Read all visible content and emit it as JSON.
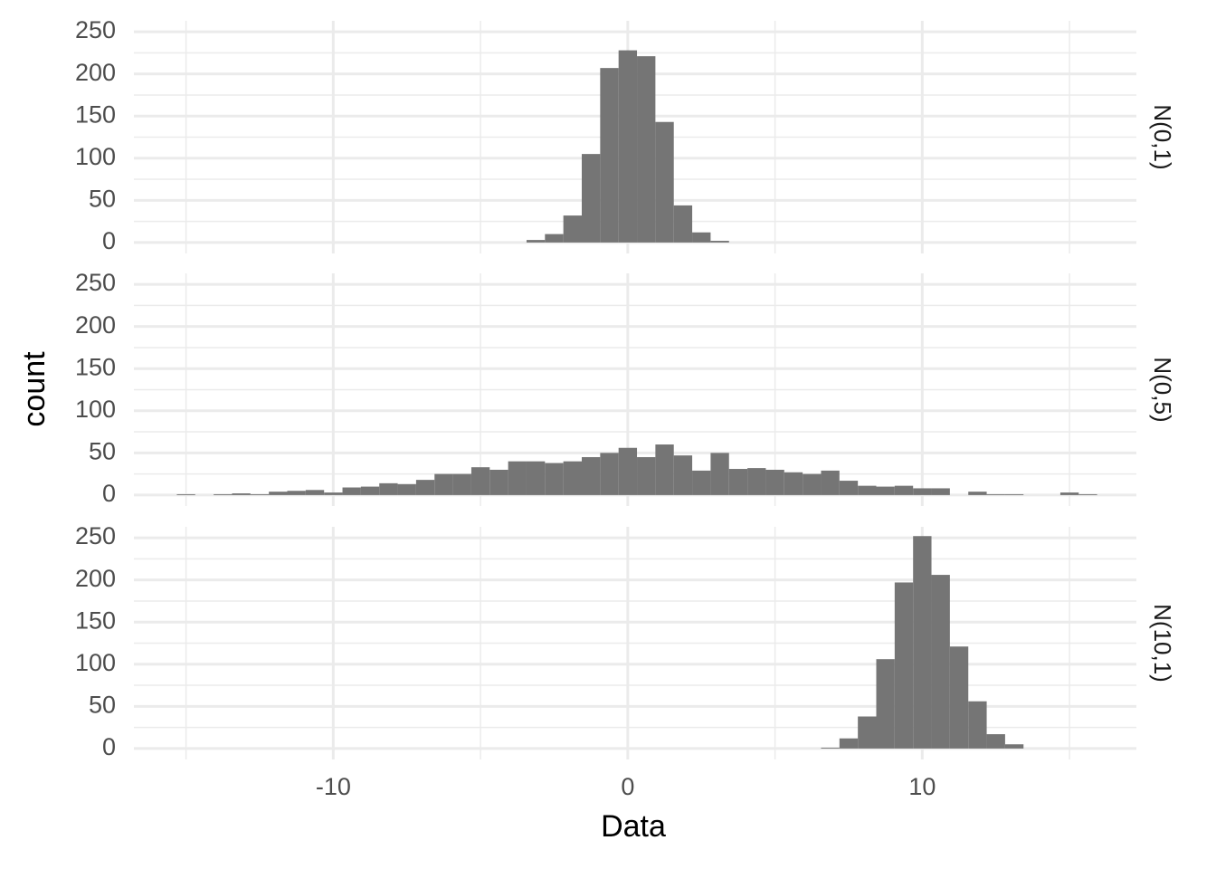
{
  "chart_data": {
    "type": "histogram",
    "x_label": "Data",
    "y_label": "count",
    "xlim": [
      -16.77,
      17.27
    ],
    "xticks": [
      -10,
      0,
      10
    ],
    "minor_xticks": [
      -15,
      -5,
      5,
      15
    ],
    "ylim": [
      -13,
      263
    ],
    "yticks": [
      0,
      50,
      100,
      150,
      200,
      250
    ],
    "minor_yticks": [
      25,
      75,
      125,
      175,
      225
    ],
    "grid": true,
    "color": "#757575",
    "facets": [
      {
        "label": "N(0,1)",
        "bins": [
          -3.4375,
          -2.8125,
          -2.1875,
          -1.5625,
          -0.9375,
          -0.3125,
          0.3125,
          0.9375,
          1.5625,
          2.1875,
          2.8125,
          3.4375
        ],
        "values": [
          3,
          10,
          32,
          105,
          207,
          228,
          221,
          143,
          44,
          12,
          2
        ]
      },
      {
        "label": "N(0,5)",
        "bins": [
          -15.3125,
          -14.6875,
          -14.0625,
          -13.4375,
          -12.8125,
          -12.1875,
          -11.5625,
          -10.9375,
          -10.3125,
          -9.6875,
          -9.0625,
          -8.4375,
          -7.8125,
          -7.1875,
          -6.5625,
          -5.9375,
          -5.3125,
          -4.6875,
          -4.0625,
          -3.4375,
          -2.8125,
          -2.1875,
          -1.5625,
          -0.9375,
          -0.3125,
          0.3125,
          0.9375,
          1.5625,
          2.1875,
          2.8125,
          3.4375,
          4.0625,
          4.6875,
          5.3125,
          5.9375,
          6.5625,
          7.1875,
          7.8125,
          8.4375,
          9.0625,
          9.6875,
          10.3125,
          10.9375,
          11.5625,
          12.1875,
          12.8125,
          13.4375,
          14.0625,
          14.6875,
          15.3125,
          15.9375
        ],
        "values": [
          1,
          0,
          1,
          2,
          1,
          4,
          5,
          6,
          3,
          9,
          10,
          14,
          13,
          18,
          25,
          25,
          33,
          30,
          40,
          40,
          38,
          40,
          45,
          50,
          56,
          45,
          60,
          47,
          29,
          50,
          31,
          32,
          30,
          27,
          25,
          29,
          17,
          11,
          10,
          11,
          8,
          8,
          0,
          4,
          1,
          1,
          0,
          0,
          3,
          1
        ]
      },
      {
        "label": "N(10,1)",
        "bins": [
          6.5625,
          7.1875,
          7.8125,
          8.4375,
          9.0625,
          9.6875,
          10.3125,
          10.9375,
          11.5625,
          12.1875,
          12.8125,
          13.4375
        ],
        "values": [
          1,
          12,
          38,
          106,
          197,
          252,
          206,
          121,
          56,
          17,
          5
        ]
      }
    ]
  }
}
